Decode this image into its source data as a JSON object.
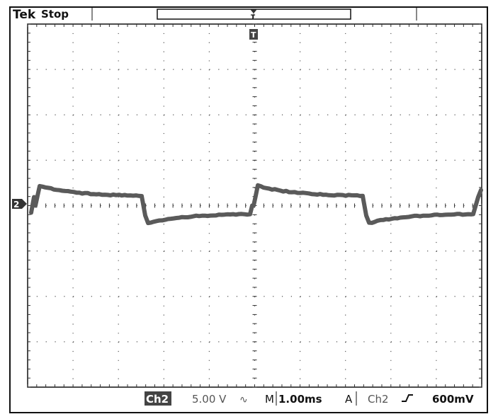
{
  "header": {
    "brand": "Tek",
    "status": "Stop"
  },
  "trigger": {
    "marker_label": "T",
    "position_label": "T"
  },
  "channel": {
    "marker_label": "2"
  },
  "status_bar": {
    "channel_badge": "Ch2",
    "volts_per_div": "5.00 V",
    "coupling_symbol": "∿",
    "timebase_prefix": "M",
    "timebase": "1.00ms",
    "trigger_mode": "A",
    "trigger_source": "Ch2",
    "trigger_slope_symbol": "╱",
    "trigger_level": "600mV"
  },
  "colors": {
    "background": "#ffffff",
    "foreground": "#111111",
    "trace": "#5a5a5a"
  }
}
